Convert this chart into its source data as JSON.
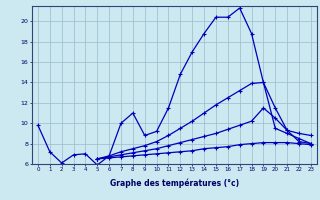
{
  "xlabel": "Graphe des températures (°c)",
  "bg_color": "#cce8f0",
  "line_color": "#0000bb",
  "grid_color": "#99bbcc",
  "xlim": [
    -0.5,
    23.5
  ],
  "ylim": [
    6,
    21.5
  ],
  "xticks": [
    0,
    1,
    2,
    3,
    4,
    5,
    6,
    7,
    8,
    9,
    10,
    11,
    12,
    13,
    14,
    15,
    16,
    17,
    18,
    19,
    20,
    21,
    22,
    23
  ],
  "yticks": [
    6,
    8,
    10,
    12,
    14,
    16,
    18,
    20
  ],
  "curve1_x": [
    0,
    1,
    2,
    3,
    4,
    5,
    6,
    7,
    8,
    9,
    10,
    11,
    12,
    13,
    14,
    15,
    16,
    17,
    18,
    19,
    20,
    21,
    22,
    23
  ],
  "curve1_y": [
    9.8,
    7.2,
    6.1,
    6.9,
    7.0,
    5.9,
    6.8,
    10.0,
    11.0,
    8.8,
    9.2,
    11.5,
    14.8,
    17.0,
    18.8,
    20.4,
    20.4,
    21.3,
    18.8,
    14.0,
    11.5,
    9.3,
    8.2,
    8.0
  ],
  "curve2_x": [
    5,
    6,
    7,
    8,
    9,
    10,
    11,
    12,
    13,
    14,
    15,
    16,
    17,
    18,
    19,
    20,
    21,
    22,
    23
  ],
  "curve2_y": [
    6.5,
    6.8,
    7.2,
    7.5,
    7.8,
    8.2,
    8.8,
    9.5,
    10.2,
    11.0,
    11.8,
    12.5,
    13.2,
    13.9,
    14.0,
    9.5,
    9.0,
    8.5,
    8.0
  ],
  "curve3_x": [
    5,
    6,
    7,
    8,
    9,
    10,
    11,
    12,
    13,
    14,
    15,
    16,
    17,
    18,
    19,
    20,
    21,
    22,
    23
  ],
  "curve3_y": [
    6.5,
    6.7,
    6.9,
    7.1,
    7.3,
    7.5,
    7.8,
    8.1,
    8.4,
    8.7,
    9.0,
    9.4,
    9.8,
    10.2,
    11.5,
    10.5,
    9.3,
    9.0,
    8.8
  ],
  "curve4_x": [
    5,
    6,
    7,
    8,
    9,
    10,
    11,
    12,
    13,
    14,
    15,
    16,
    17,
    18,
    19,
    20,
    21,
    22,
    23
  ],
  "curve4_y": [
    6.5,
    6.6,
    6.7,
    6.8,
    6.9,
    7.0,
    7.1,
    7.2,
    7.3,
    7.5,
    7.6,
    7.7,
    7.9,
    8.0,
    8.1,
    8.1,
    8.1,
    8.0,
    7.9
  ]
}
